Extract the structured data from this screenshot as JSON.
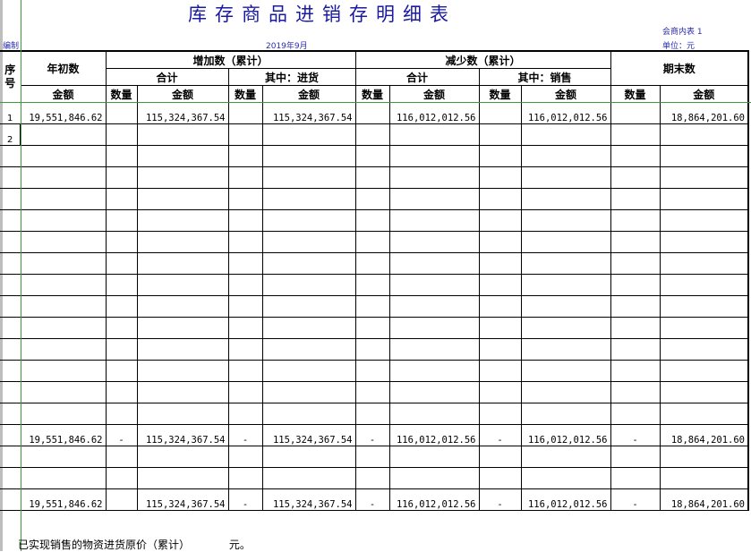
{
  "title": "库存商品进销存明细表",
  "form_code": "会商内表 1",
  "preparer_label": "编制",
  "period": "2019年9月",
  "unit": "单位：元",
  "headers": {
    "seq": "序号",
    "opening": "年初数",
    "increase": "增加数（累计）",
    "decrease": "减少数（累计）",
    "closing": "期末数",
    "total": "合计",
    "purchase": "其中：进货",
    "sales": "其中：销售",
    "qty": "数量",
    "amount": "金额"
  },
  "rows": [
    {
      "seq": "1",
      "cells": [
        "19,551,846.62",
        "",
        "115,324,367.54",
        "",
        "115,324,367.54",
        "",
        "116,012,012.56",
        "",
        "116,012,012.56",
        "",
        "18,864,201.60"
      ]
    },
    {
      "seq": "2",
      "cells": [
        "",
        "",
        "",
        "",
        "",
        "",
        "",
        "",
        "",
        "",
        ""
      ]
    },
    {
      "seq": "",
      "cells": [
        "",
        "",
        "",
        "",
        "",
        "",
        "",
        "",
        "",
        "",
        ""
      ]
    },
    {
      "seq": "",
      "cells": [
        "",
        "",
        "",
        "",
        "",
        "",
        "",
        "",
        "",
        "",
        ""
      ]
    },
    {
      "seq": "",
      "cells": [
        "",
        "",
        "",
        "",
        "",
        "",
        "",
        "",
        "",
        "",
        ""
      ]
    },
    {
      "seq": "",
      "cells": [
        "",
        "",
        "",
        "",
        "",
        "",
        "",
        "",
        "",
        "",
        ""
      ]
    },
    {
      "seq": "",
      "cells": [
        "",
        "",
        "",
        "",
        "",
        "",
        "",
        "",
        "",
        "",
        ""
      ]
    },
    {
      "seq": "",
      "cells": [
        "",
        "",
        "",
        "",
        "",
        "",
        "",
        "",
        "",
        "",
        ""
      ]
    },
    {
      "seq": "",
      "cells": [
        "",
        "",
        "",
        "",
        "",
        "",
        "",
        "",
        "",
        "",
        ""
      ]
    },
    {
      "seq": "",
      "cells": [
        "",
        "",
        "",
        "",
        "",
        "",
        "",
        "",
        "",
        "",
        ""
      ]
    },
    {
      "seq": "",
      "cells": [
        "",
        "",
        "",
        "",
        "",
        "",
        "",
        "",
        "",
        "",
        ""
      ]
    },
    {
      "seq": "",
      "cells": [
        "",
        "",
        "",
        "",
        "",
        "",
        "",
        "",
        "",
        "",
        ""
      ]
    },
    {
      "seq": "",
      "cells": [
        "",
        "",
        "",
        "",
        "",
        "",
        "",
        "",
        "",
        "",
        ""
      ]
    },
    {
      "seq": "",
      "cells": [
        "",
        "",
        "",
        "",
        "",
        "",
        "",
        "",
        "",
        "",
        ""
      ]
    },
    {
      "seq": "",
      "cells": [
        "",
        "",
        "",
        "",
        "",
        "",
        "",
        "",
        "",
        "",
        ""
      ]
    },
    {
      "seq": "",
      "cells": [
        "19,551,846.62",
        "-",
        "115,324,367.54",
        "-",
        "115,324,367.54",
        "-",
        "116,012,012.56",
        "-",
        "116,012,012.56",
        "-",
        "18,864,201.60"
      ]
    },
    {
      "seq": "",
      "cells": [
        "",
        "",
        "",
        "",
        "",
        "",
        "",
        "",
        "",
        "",
        ""
      ]
    },
    {
      "seq": "",
      "cells": [
        "",
        "",
        "",
        "",
        "",
        "",
        "",
        "",
        "",
        "",
        ""
      ]
    },
    {
      "seq": "",
      "cells": [
        "19,551,846.62",
        "",
        "115,324,367.54",
        "-",
        "115,324,367.54",
        "-",
        "116,012,012.56",
        "-",
        "116,012,012.56",
        "-",
        "18,864,201.60"
      ]
    }
  ],
  "footer": {
    "text": "已实现销售的物资进货原价（累计）",
    "unit": "元。"
  }
}
